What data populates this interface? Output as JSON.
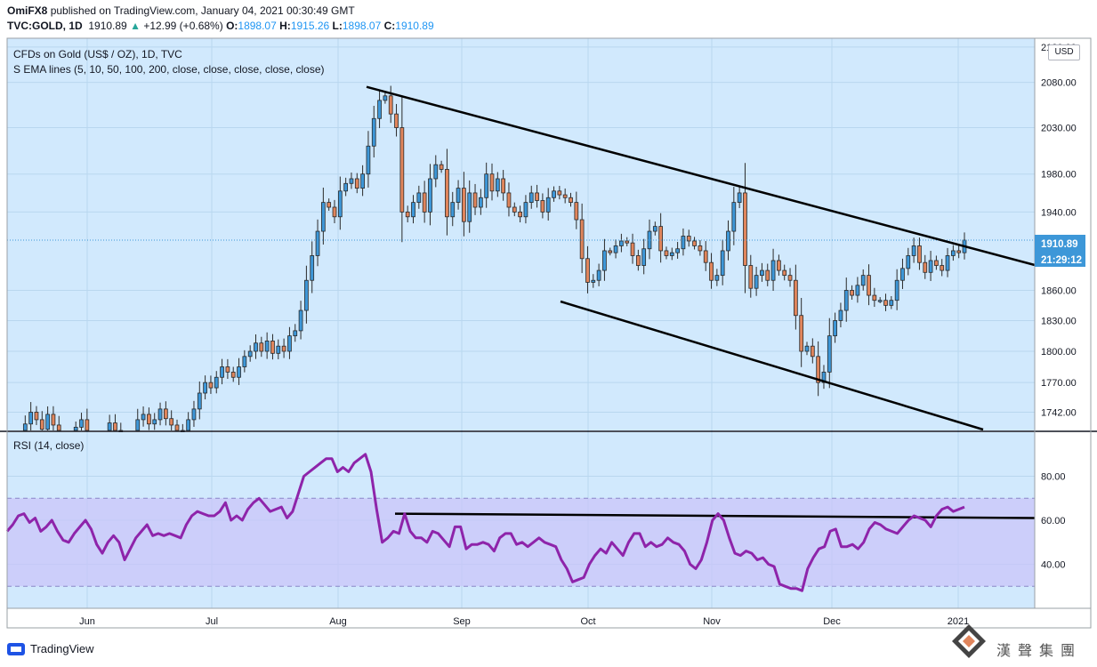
{
  "header": {
    "user": "OmiFX8",
    "published_text": "published on TradingView.com, January 04, 2021 00:30:49 GMT",
    "symbol_line": "TVC:GOLD, 1D",
    "last": "1910.89",
    "change_arrow": "▲",
    "change": "+12.99 (+0.68%)",
    "o_label": "O:",
    "o_value": "1898.07",
    "h_label": "H:",
    "h_value": "1915.26",
    "l_label": "L:",
    "l_value": "1898.07",
    "c_label": "C:",
    "c_value": "1910.89"
  },
  "legend": {
    "instrument": "CFDs on Gold (US$ / OZ), 1D, TVC",
    "ema": "S EMA lines (5, 10, 50, 100, 200, close, close, close, close, close)",
    "rsi": "RSI (14, close)"
  },
  "price_axis": {
    "currency": "USD",
    "ticks": [
      "2120.00",
      "2080.00",
      "2030.00",
      "1980.00",
      "1940.00",
      "1860.00",
      "1830.00",
      "1800.00",
      "1770.00",
      "1742.00"
    ],
    "last_price": "1910.89",
    "countdown": "21:29:12"
  },
  "rsi_axis": {
    "ticks": [
      "80.00",
      "60.00",
      "40.00"
    ]
  },
  "time_axis": {
    "labels": [
      "Jun",
      "Jul",
      "Aug",
      "Sep",
      "Oct",
      "Nov",
      "Dec",
      "2021"
    ]
  },
  "footer": {
    "brand": "TradingView"
  },
  "watermark": {
    "text": "漢聲集團"
  },
  "colors": {
    "panel_bg": "#d1e9fd",
    "up_candle": "#3d97d8",
    "down_candle": "#e0855c",
    "rsi_line": "#8e24aa",
    "rsi_band": "#c9c4f8",
    "trend_line": "#000000",
    "last_price_tag": "#3d97d8"
  },
  "chart_data": [
    {
      "type": "candlestick",
      "title": "CFDs on Gold (US$ / OZ), 1D, TVC",
      "x_labels": [
        "Jun",
        "Jul",
        "Aug",
        "Sep",
        "Oct",
        "Nov",
        "Dec",
        "2021"
      ],
      "ylim": [
        1725,
        2130
      ],
      "log_scale": true,
      "last_price": 1910.89,
      "close_series": [
        1720,
        1731,
        1742,
        1735,
        1726,
        1740,
        1730,
        1722,
        1710,
        1720,
        1728,
        1735,
        1722,
        1715,
        1710,
        1722,
        1732,
        1725,
        1714,
        1708,
        1718,
        1735,
        1740,
        1731,
        1735,
        1745,
        1736,
        1730,
        1725,
        1722,
        1735,
        1745,
        1760,
        1770,
        1765,
        1775,
        1785,
        1780,
        1775,
        1785,
        1795,
        1800,
        1808,
        1800,
        1810,
        1798,
        1805,
        1800,
        1815,
        1820,
        1840,
        1870,
        1895,
        1920,
        1950,
        1945,
        1935,
        1962,
        1970,
        1975,
        1965,
        1980,
        2010,
        2040,
        2060,
        2065,
        2045,
        2030,
        1940,
        1935,
        1950,
        1960,
        1940,
        1975,
        1990,
        1985,
        1935,
        1950,
        1965,
        1930,
        1960,
        1945,
        1955,
        1980,
        1962,
        1975,
        1960,
        1945,
        1940,
        1935,
        1950,
        1960,
        1952,
        1940,
        1955,
        1962,
        1958,
        1955,
        1950,
        1932,
        1892,
        1868,
        1870,
        1880,
        1900,
        1898,
        1905,
        1910,
        1908,
        1895,
        1885,
        1902,
        1920,
        1925,
        1900,
        1895,
        1898,
        1902,
        1915,
        1910,
        1905,
        1900,
        1888,
        1870,
        1875,
        1900,
        1920,
        1950,
        1960,
        1885,
        1862,
        1875,
        1880,
        1870,
        1890,
        1880,
        1875,
        1870,
        1835,
        1800,
        1805,
        1795,
        1770,
        1780,
        1815,
        1830,
        1840,
        1860,
        1855,
        1865,
        1875,
        1855,
        1850,
        1850,
        1845,
        1850,
        1870,
        1882,
        1895,
        1905,
        1888,
        1878,
        1890,
        1885,
        1880,
        1895,
        1900,
        1898,
        1910.89
      ],
      "ema_lines": [
        5,
        10,
        50,
        100,
        200
      ],
      "trend_lines": [
        {
          "name": "upper",
          "from": [
            "2020-08-06",
            2075
          ],
          "to": [
            "2021-01-15",
            1890
          ]
        },
        {
          "name": "lower",
          "from": [
            "2020-09-24",
            1850
          ],
          "to": [
            "2021-01-15",
            1730
          ]
        }
      ]
    },
    {
      "type": "line",
      "title": "RSI (14, close)",
      "ylim": [
        20,
        100
      ],
      "band": [
        30,
        70
      ],
      "values": [
        55,
        58,
        62,
        63,
        59,
        61,
        55,
        57,
        60,
        55,
        51,
        50,
        54,
        57,
        60,
        56,
        49,
        45,
        50,
        53,
        50,
        42,
        47,
        52,
        55,
        58,
        53,
        54,
        53,
        54,
        53,
        52,
        58,
        62,
        64,
        63,
        62,
        62,
        64,
        68,
        60,
        62,
        60,
        65,
        68,
        70,
        67,
        64,
        65,
        66,
        61,
        64,
        72,
        80,
        82,
        84,
        86,
        88,
        88,
        82,
        84,
        82,
        86,
        88,
        90,
        82,
        65,
        50,
        52,
        55,
        54,
        63,
        55,
        52,
        52,
        50,
        55,
        54,
        51,
        48,
        57,
        57,
        47,
        49,
        49,
        50,
        49,
        46,
        52,
        54,
        54,
        49,
        50,
        48,
        50,
        52,
        50,
        49,
        48,
        42,
        38,
        32,
        33,
        34,
        40,
        44,
        47,
        45,
        50,
        47,
        44,
        50,
        54,
        54,
        48,
        50,
        48,
        49,
        52,
        50,
        49,
        46,
        40,
        38,
        42,
        50,
        60,
        63,
        60,
        52,
        45,
        44,
        46,
        45,
        42,
        43,
        40,
        39,
        31,
        30,
        29,
        29,
        28,
        38,
        43,
        47,
        48,
        55,
        56,
        48,
        48,
        49,
        47,
        50,
        56,
        59,
        58,
        56,
        55,
        54,
        57,
        60,
        62,
        61,
        60,
        57,
        62,
        65,
        66,
        64,
        65,
        66
      ],
      "trend_line": {
        "from": [
          "2020-08-11",
          63
        ],
        "to": [
          "2021-01-15",
          61
        ]
      }
    }
  ]
}
